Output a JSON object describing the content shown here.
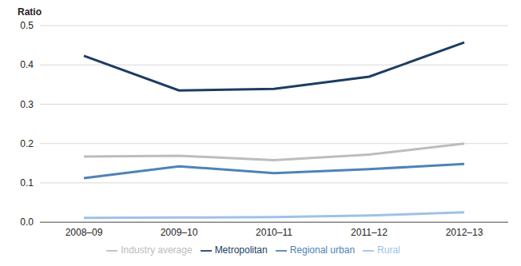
{
  "chart_data": {
    "type": "line",
    "y_label": "Ratio",
    "categories": [
      "2008–09",
      "2009–10",
      "2010–11",
      "2011–12",
      "2012–13"
    ],
    "series": [
      {
        "name": "Metropolitan",
        "color": "#1c3d63",
        "values": [
          0.423,
          0.335,
          0.339,
          0.37,
          0.457
        ]
      },
      {
        "name": "Regional urban",
        "color": "#4f82b8",
        "values": [
          0.112,
          0.142,
          0.125,
          0.135,
          0.148
        ]
      },
      {
        "name": "Rural",
        "color": "#9dc3e6",
        "values": [
          0.011,
          0.012,
          0.013,
          0.017,
          0.025
        ]
      },
      {
        "name": "Industry average",
        "color": "#bdbdbd",
        "values": [
          0.167,
          0.169,
          0.158,
          0.172,
          0.2
        ]
      }
    ],
    "ylim": [
      0,
      0.5
    ],
    "yticks": [
      {
        "value": 0,
        "label": "0.0"
      },
      0.1,
      0.2,
      0.3,
      0.4,
      0.5
    ],
    "grid": true,
    "legend": "bottom"
  }
}
